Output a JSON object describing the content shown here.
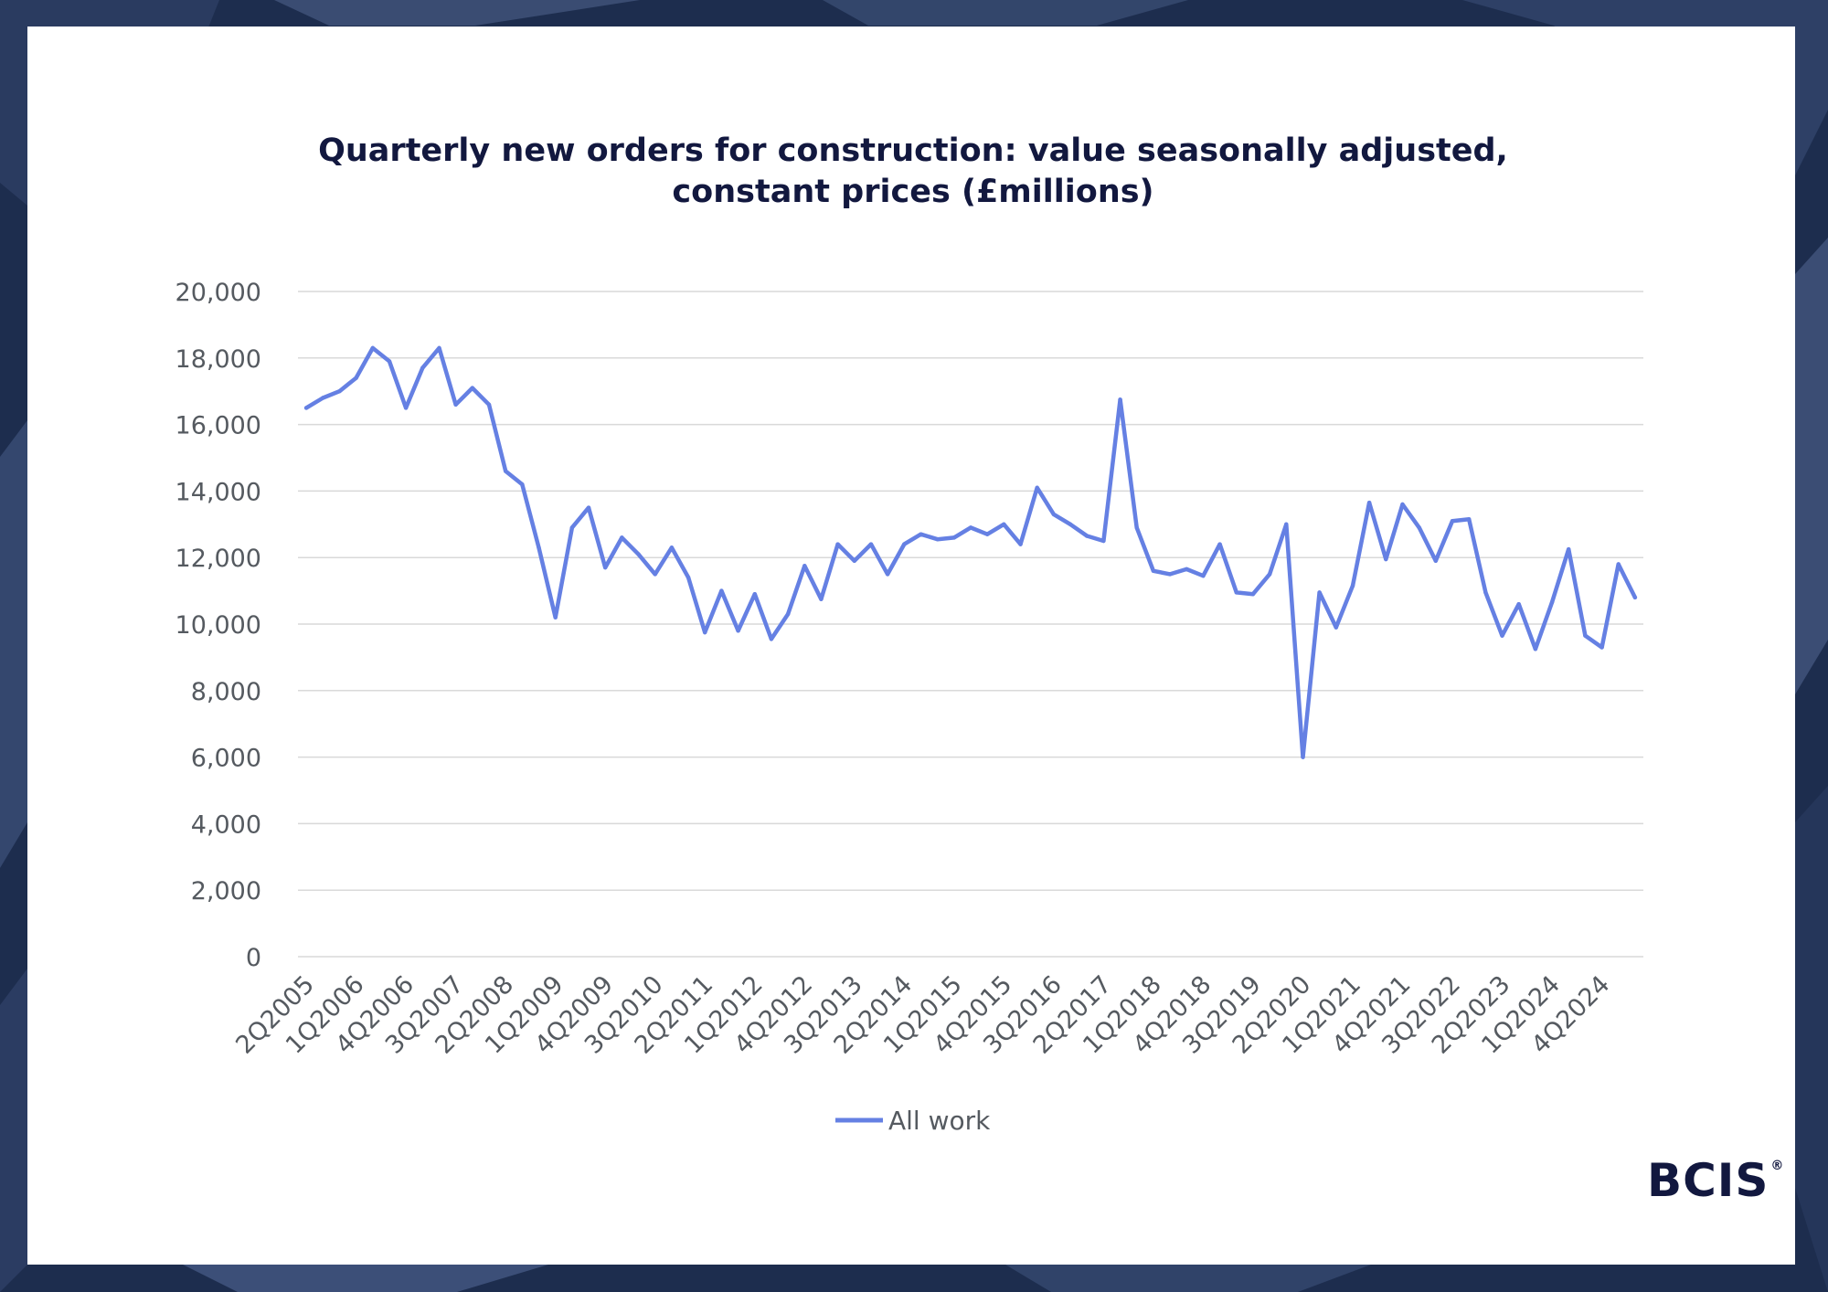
{
  "brand": {
    "logo_text": "BCIS",
    "logo_mark": "®"
  },
  "colors": {
    "line": "#6580e3",
    "grid": "#d9d9d9",
    "title": "#12183f",
    "text": "#555a60",
    "frame": "#1d2d4e"
  },
  "chart_data": {
    "type": "line",
    "title_lines": [
      "Quarterly new orders for construction: value seasonally adjusted,",
      "constant prices (£millions)"
    ],
    "xlabel": "",
    "ylabel": "",
    "ylim": [
      0,
      20000
    ],
    "yticks": [
      "0",
      "2,000",
      "4,000",
      "6,000",
      "8,000",
      "10,000",
      "12,000",
      "14,000",
      "16,000",
      "18,000",
      "20,000"
    ],
    "grid": true,
    "legend_position": "bottom",
    "x_tick_labels": [
      "2Q2005",
      "1Q2006",
      "4Q2006",
      "3Q2007",
      "2Q2008",
      "1Q2009",
      "4Q2009",
      "3Q2010",
      "2Q2011",
      "1Q2012",
      "4Q2012",
      "3Q2013",
      "2Q2014",
      "1Q2015",
      "4Q2015",
      "3Q2016",
      "2Q2017",
      "1Q2018",
      "4Q2018",
      "3Q2019",
      "2Q2020",
      "1Q2021",
      "4Q2021",
      "3Q2022",
      "2Q2023",
      "1Q2024",
      "4Q2024"
    ],
    "categories": [
      "2Q2005",
      "3Q2005",
      "4Q2005",
      "1Q2006",
      "2Q2006",
      "3Q2006",
      "4Q2006",
      "1Q2007",
      "2Q2007",
      "3Q2007",
      "4Q2007",
      "1Q2008",
      "2Q2008",
      "3Q2008",
      "4Q2008",
      "1Q2009",
      "2Q2009",
      "3Q2009",
      "4Q2009",
      "1Q2010",
      "2Q2010",
      "3Q2010",
      "4Q2010",
      "1Q2011",
      "2Q2011",
      "3Q2011",
      "4Q2011",
      "1Q2012",
      "2Q2012",
      "3Q2012",
      "4Q2012",
      "1Q2013",
      "2Q2013",
      "3Q2013",
      "4Q2013",
      "1Q2014",
      "2Q2014",
      "3Q2014",
      "4Q2014",
      "1Q2015",
      "2Q2015",
      "3Q2015",
      "4Q2015",
      "1Q2016",
      "2Q2016",
      "3Q2016",
      "4Q2016",
      "1Q2017",
      "2Q2017",
      "3Q2017",
      "4Q2017",
      "1Q2018",
      "2Q2018",
      "3Q2018",
      "4Q2018",
      "1Q2019",
      "2Q2019",
      "3Q2019",
      "4Q2019",
      "1Q2020",
      "2Q2020",
      "3Q2020",
      "4Q2020",
      "1Q2021",
      "2Q2021",
      "3Q2021",
      "4Q2021",
      "1Q2022",
      "2Q2022",
      "3Q2022",
      "4Q2022",
      "1Q2023",
      "2Q2023",
      "3Q2023",
      "4Q2023",
      "1Q2024",
      "2Q2024",
      "3Q2024",
      "4Q2024",
      "1Q2025",
      "2Q2025"
    ],
    "series": [
      {
        "name": "All work",
        "values": [
          16500,
          16800,
          17000,
          17400,
          18300,
          17900,
          16500,
          17700,
          18300,
          16600,
          17100,
          16600,
          14600,
          14200,
          12300,
          10200,
          12900,
          13500,
          11700,
          12600,
          12100,
          11500,
          12300,
          11400,
          9750,
          11000,
          9800,
          10900,
          9550,
          10300,
          11750,
          10750,
          12400,
          11900,
          12400,
          11500,
          12400,
          12700,
          12550,
          12600,
          12900,
          12700,
          13000,
          12400,
          14100,
          13300,
          13000,
          12650,
          12500,
          16750,
          12900,
          11600,
          11500,
          11650,
          11450,
          12400,
          10950,
          10900,
          11500,
          13000,
          6000,
          10950,
          9900,
          11150,
          13650,
          11950,
          13600,
          12900,
          11900,
          13100,
          13150,
          10950,
          9650,
          10600,
          9250,
          10650,
          12250,
          9650,
          9300,
          11800,
          10800
        ]
      }
    ]
  }
}
